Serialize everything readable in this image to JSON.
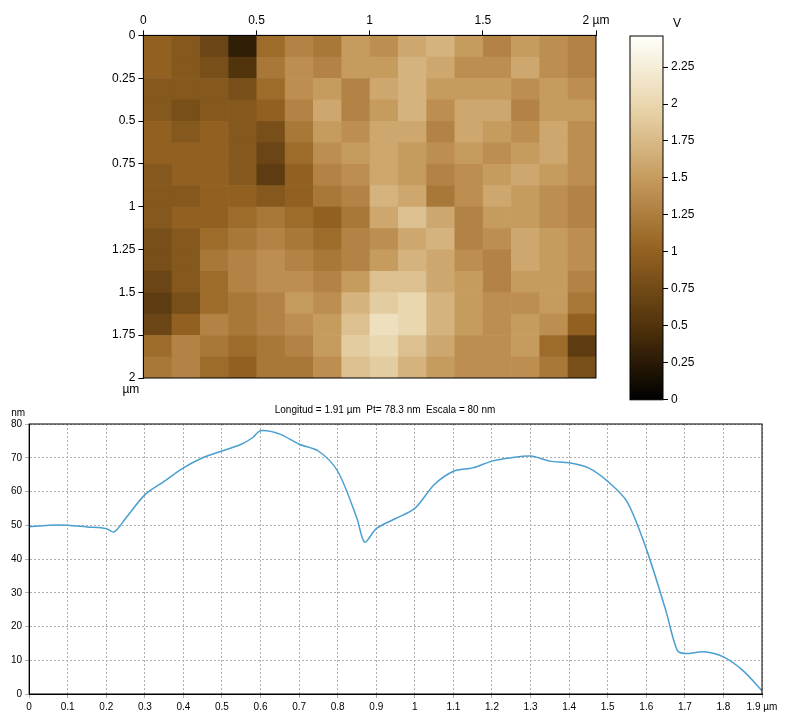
{
  "chart_data": [
    {
      "type": "heatmap",
      "xlim": [
        0,
        2
      ],
      "ylim": [
        0,
        2
      ],
      "xticks": [
        0,
        0.5,
        1,
        1.5,
        {
          "value": 2,
          "label": "2 µm"
        }
      ],
      "yticks": [
        0,
        0.25,
        0.5,
        0.75,
        1,
        1.25,
        1.5,
        1.75,
        2
      ],
      "ylabel": "µm",
      "grid": false,
      "cells": [
        [
          1.0,
          0.9,
          0.7,
          0.3,
          1.1,
          1.3,
          1.2,
          1.5,
          1.4,
          1.6,
          1.7,
          1.5,
          1.3,
          1.5,
          1.4,
          1.3
        ],
        [
          1.0,
          0.9,
          0.8,
          0.5,
          1.2,
          1.4,
          1.3,
          1.5,
          1.5,
          1.7,
          1.6,
          1.4,
          1.4,
          1.6,
          1.4,
          1.3
        ],
        [
          0.9,
          0.9,
          0.9,
          0.8,
          1.1,
          1.4,
          1.5,
          1.3,
          1.6,
          1.7,
          1.5,
          1.5,
          1.5,
          1.4,
          1.5,
          1.4
        ],
        [
          0.9,
          0.8,
          0.9,
          0.9,
          1.0,
          1.3,
          1.6,
          1.3,
          1.5,
          1.7,
          1.4,
          1.6,
          1.6,
          1.3,
          1.5,
          1.5
        ],
        [
          1.0,
          0.9,
          1.0,
          0.9,
          0.8,
          1.2,
          1.5,
          1.4,
          1.6,
          1.6,
          1.3,
          1.6,
          1.5,
          1.4,
          1.6,
          1.4
        ],
        [
          1.0,
          1.0,
          1.0,
          0.9,
          0.7,
          1.1,
          1.4,
          1.5,
          1.6,
          1.5,
          1.4,
          1.5,
          1.4,
          1.5,
          1.6,
          1.4
        ],
        [
          0.9,
          1.0,
          1.0,
          0.9,
          0.6,
          1.0,
          1.3,
          1.4,
          1.6,
          1.5,
          1.3,
          1.4,
          1.5,
          1.6,
          1.5,
          1.4
        ],
        [
          0.9,
          0.9,
          1.0,
          1.0,
          0.9,
          1.0,
          1.2,
          1.3,
          1.7,
          1.6,
          1.2,
          1.4,
          1.6,
          1.5,
          1.4,
          1.3
        ],
        [
          0.9,
          1.0,
          1.0,
          1.1,
          1.2,
          1.1,
          1.0,
          1.2,
          1.6,
          1.8,
          1.6,
          1.3,
          1.5,
          1.5,
          1.4,
          1.3
        ],
        [
          0.8,
          0.9,
          1.1,
          1.2,
          1.3,
          1.2,
          1.1,
          1.3,
          1.4,
          1.6,
          1.7,
          1.3,
          1.4,
          1.6,
          1.5,
          1.4
        ],
        [
          0.8,
          0.9,
          1.2,
          1.3,
          1.4,
          1.3,
          1.2,
          1.3,
          1.5,
          1.7,
          1.6,
          1.4,
          1.3,
          1.6,
          1.5,
          1.4
        ],
        [
          0.7,
          0.9,
          1.1,
          1.3,
          1.4,
          1.4,
          1.3,
          1.5,
          1.8,
          1.8,
          1.6,
          1.5,
          1.3,
          1.5,
          1.5,
          1.3
        ],
        [
          0.6,
          0.8,
          1.1,
          1.2,
          1.3,
          1.5,
          1.4,
          1.7,
          1.9,
          2.0,
          1.7,
          1.5,
          1.4,
          1.4,
          1.5,
          1.2
        ],
        [
          0.7,
          1.0,
          1.3,
          1.2,
          1.3,
          1.4,
          1.5,
          1.8,
          2.1,
          2.0,
          1.7,
          1.5,
          1.4,
          1.5,
          1.4,
          1.0
        ],
        [
          1.1,
          1.3,
          1.2,
          1.1,
          1.2,
          1.3,
          1.5,
          1.9,
          2.0,
          1.8,
          1.6,
          1.4,
          1.4,
          1.5,
          1.1,
          0.6
        ],
        [
          1.2,
          1.3,
          1.1,
          1.0,
          1.2,
          1.2,
          1.4,
          1.8,
          1.9,
          1.7,
          1.5,
          1.4,
          1.4,
          1.4,
          1.2,
          0.8
        ]
      ],
      "colorbar": {
        "label": "V",
        "range": [
          0,
          2.46
        ],
        "ticks": [
          0,
          0.25,
          0.5,
          0.75,
          1,
          1.25,
          1.5,
          1.75,
          2,
          2.25
        ]
      }
    },
    {
      "type": "line",
      "title": "Longitud = 1.91 µm  Pt= 78.3 nm  Escala = 80 nm",
      "ylabel": "nm",
      "x": [
        0,
        0.05,
        0.1,
        0.15,
        0.2,
        0.22,
        0.25,
        0.3,
        0.35,
        0.4,
        0.45,
        0.5,
        0.55,
        0.58,
        0.6,
        0.65,
        0.7,
        0.75,
        0.8,
        0.85,
        0.87,
        0.9,
        0.95,
        1.0,
        1.05,
        1.1,
        1.15,
        1.2,
        1.25,
        1.3,
        1.35,
        1.4,
        1.45,
        1.5,
        1.55,
        1.6,
        1.65,
        1.68,
        1.7,
        1.75,
        1.8,
        1.85,
        1.9
      ],
      "values": [
        49.5,
        50,
        50,
        49.5,
        49,
        48,
        52,
        59,
        63,
        67,
        70,
        72,
        74,
        76,
        78,
        77,
        74,
        72,
        66,
        52,
        45,
        49,
        52,
        55,
        62,
        66,
        67,
        69,
        70,
        70.5,
        69,
        68.5,
        67,
        63,
        57,
        43,
        25,
        13,
        12,
        12.5,
        11,
        7,
        1
      ],
      "color": "#4a9fd0",
      "xlim": [
        0,
        1.9
      ],
      "ylim": [
        0,
        80
      ],
      "xticks": [
        0,
        0.1,
        0.2,
        0.3,
        0.4,
        0.5,
        0.6,
        0.7,
        0.8,
        0.9,
        1,
        1.1,
        1.2,
        1.3,
        1.4,
        1.5,
        1.6,
        1.7,
        1.8,
        {
          "value": 1.9,
          "label": "1.9 µm"
        }
      ],
      "yticks": [
        0,
        10,
        20,
        30,
        40,
        50,
        60,
        70,
        80
      ],
      "grid": true
    }
  ]
}
